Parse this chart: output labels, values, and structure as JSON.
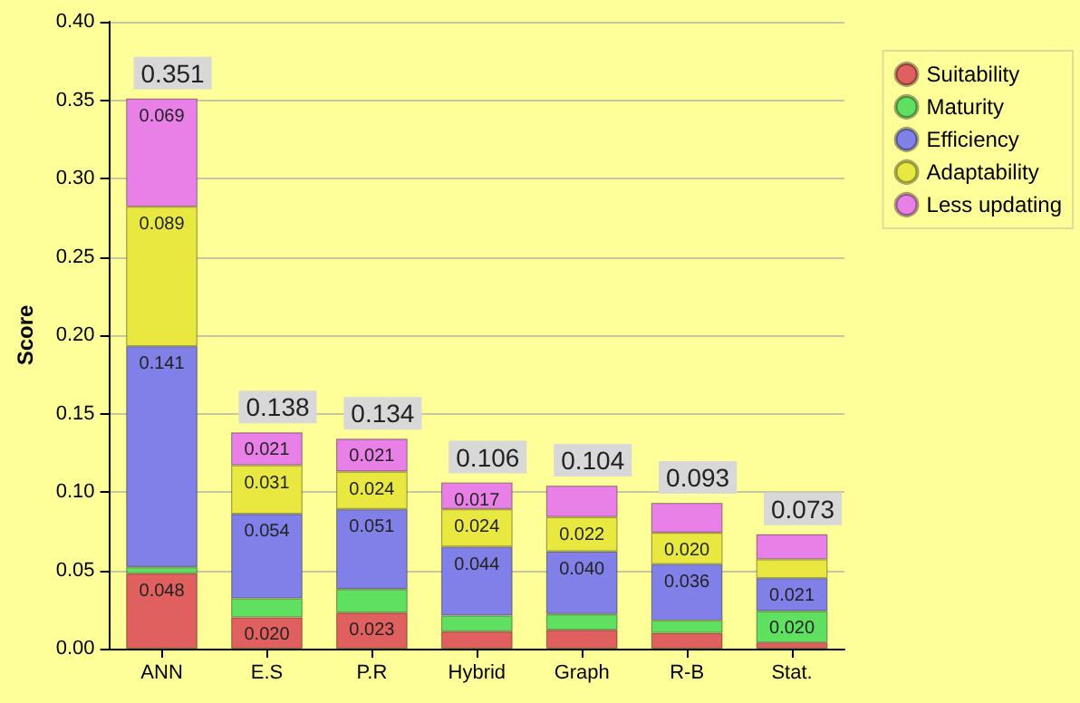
{
  "chart_data": {
    "type": "bar",
    "stacked": true,
    "ylabel": "Score",
    "categories": [
      "ANN",
      "E.S",
      "P.R",
      "Hybrid",
      "Graph",
      "R-B",
      "Stat."
    ],
    "series": [
      {
        "name": "Suitability",
        "color": "#e06060",
        "values": [
          0.048,
          0.02,
          0.023,
          0.011,
          0.012,
          0.01,
          0.004
        ],
        "value_labels": [
          "0.048",
          "0.020",
          "0.023",
          null,
          null,
          null,
          null
        ]
      },
      {
        "name": "Maturity",
        "color": "#60e060",
        "values": [
          0.004,
          0.012,
          0.015,
          0.01,
          0.01,
          0.008,
          0.02
        ],
        "value_labels": [
          null,
          null,
          null,
          null,
          null,
          null,
          "0.020"
        ]
      },
      {
        "name": "Efficiency",
        "color": "#8080e8",
        "values": [
          0.141,
          0.054,
          0.051,
          0.044,
          0.04,
          0.036,
          0.021
        ],
        "value_labels": [
          "0.141",
          "0.054",
          "0.051",
          "0.044",
          "0.040",
          "0.036",
          "0.021"
        ]
      },
      {
        "name": "Adaptability",
        "color": "#e8e840",
        "values": [
          0.089,
          0.031,
          0.024,
          0.024,
          0.022,
          0.02,
          0.012
        ],
        "value_labels": [
          "0.089",
          "0.031",
          "0.024",
          "0.024",
          "0.022",
          "0.020",
          null
        ]
      },
      {
        "name": "Less updating",
        "color": "#e880e8",
        "values": [
          0.069,
          0.021,
          0.021,
          0.017,
          0.02,
          0.019,
          0.016
        ],
        "value_labels": [
          "0.069",
          "0.021",
          "0.021",
          "0.017",
          null,
          null,
          null
        ]
      }
    ],
    "totals": [
      "0.351",
      "0.138",
      "0.134",
      "0.106",
      "0.104",
      "0.093",
      "0.073"
    ],
    "ylim": [
      0,
      0.4
    ],
    "yticks": [
      {
        "value": 0,
        "label": "0.00"
      },
      {
        "value": 0.05,
        "label": "0.05"
      },
      {
        "value": 0.1,
        "label": "0.10"
      },
      {
        "value": 0.15,
        "label": "0.15"
      },
      {
        "value": 0.2,
        "label": "0.20"
      },
      {
        "value": 0.25,
        "label": "0.25"
      },
      {
        "value": 0.3,
        "label": "0.30"
      },
      {
        "value": 0.35,
        "label": "0.35"
      },
      {
        "value": 0.4,
        "label": "0.40"
      }
    ],
    "grid": "y",
    "legend": "top right"
  }
}
